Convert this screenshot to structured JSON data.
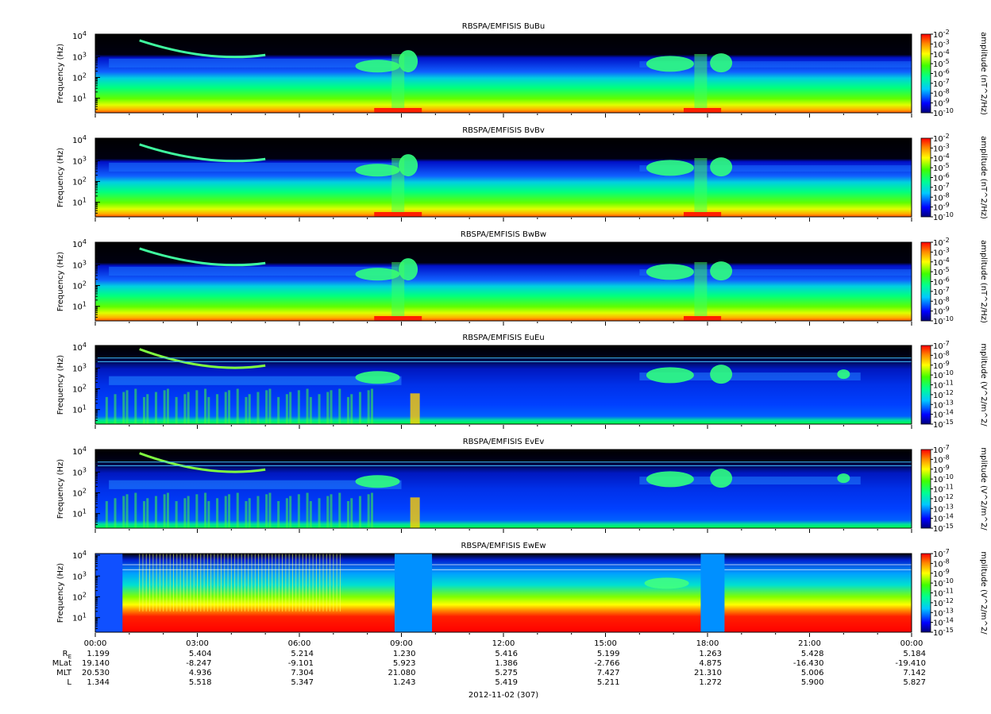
{
  "chart_data": [
    {
      "type": "heatmap",
      "title": "RBSPA/EMFISIS  BuBu",
      "ylabel": "Frequency (Hz)",
      "yscale": "log",
      "ylim": [
        2,
        12000
      ],
      "yticks": [
        "10^1",
        "10^2",
        "10^3",
        "10^4"
      ],
      "colorbar": {
        "label": "amplitude (nT^2/Hz)",
        "ticks": [
          "10^-2",
          "10^-3",
          "10^-4",
          "10^-5",
          "10^-6",
          "10^-7",
          "10^-8",
          "10^-9",
          "10^-10"
        ]
      },
      "kind": "B",
      "ew": false
    },
    {
      "type": "heatmap",
      "title": "RBSPA/EMFISIS  BvBv",
      "ylabel": "Frequency (Hz)",
      "yscale": "log",
      "ylim": [
        2,
        12000
      ],
      "yticks": [
        "10^1",
        "10^2",
        "10^3",
        "10^4"
      ],
      "colorbar": {
        "label": "amplitude (nT^2/Hz)",
        "ticks": [
          "10^-2",
          "10^-3",
          "10^-4",
          "10^-5",
          "10^-6",
          "10^-7",
          "10^-8",
          "10^-9",
          "10^-10"
        ]
      },
      "kind": "B",
      "ew": false
    },
    {
      "type": "heatmap",
      "title": "RBSPA/EMFISIS  BwBw",
      "ylabel": "Frequency (Hz)",
      "yscale": "log",
      "ylim": [
        2,
        12000
      ],
      "yticks": [
        "10^1",
        "10^2",
        "10^3",
        "10^4"
      ],
      "colorbar": {
        "label": "amplitude (nT^2/Hz)",
        "ticks": [
          "10^-2",
          "10^-3",
          "10^-4",
          "10^-5",
          "10^-6",
          "10^-7",
          "10^-8",
          "10^-9",
          "10^-10"
        ]
      },
      "kind": "B",
      "ew": false
    },
    {
      "type": "heatmap",
      "title": "RBSPA/EMFISIS  EuEu",
      "ylabel": "Frequency (Hz)",
      "yscale": "log",
      "ylim": [
        2,
        12000
      ],
      "yticks": [
        "10^1",
        "10^2",
        "10^3",
        "10^4"
      ],
      "colorbar": {
        "label": "mplitude (V^2/m^2/",
        "ticks": [
          "10^-7",
          "10^-8",
          "10^-9",
          "10^-10",
          "10^-11",
          "10^-12",
          "10^-13",
          "10^-14",
          "10^-15"
        ]
      },
      "kind": "E",
      "ew": false
    },
    {
      "type": "heatmap",
      "title": "RBSPA/EMFISIS  EvEv",
      "ylabel": "Frequency (Hz)",
      "yscale": "log",
      "ylim": [
        2,
        12000
      ],
      "yticks": [
        "10^1",
        "10^2",
        "10^3",
        "10^4"
      ],
      "colorbar": {
        "label": "mplitude (V^2/m^2/",
        "ticks": [
          "10^-7",
          "10^-8",
          "10^-9",
          "10^-10",
          "10^-11",
          "10^-12",
          "10^-13",
          "10^-14",
          "10^-15"
        ]
      },
      "kind": "E",
      "ew": false
    },
    {
      "type": "heatmap",
      "title": "RBSPA/EMFISIS  EwEw",
      "ylabel": "Frequency (Hz)",
      "yscale": "log",
      "ylim": [
        2,
        12000
      ],
      "yticks": [
        "10^1",
        "10^2",
        "10^3",
        "10^4"
      ],
      "colorbar": {
        "label": "mplitude (V^2/m^2/",
        "ticks": [
          "10^-7",
          "10^-8",
          "10^-9",
          "10^-10",
          "10^-11",
          "10^-12",
          "10^-13",
          "10^-14",
          "10^-15"
        ]
      },
      "kind": "E",
      "ew": true
    }
  ],
  "xaxis": {
    "ticks": [
      "00:00",
      "03:00",
      "06:00",
      "09:00",
      "12:00",
      "15:00",
      "18:00",
      "21:00",
      "00:00"
    ],
    "date_label": "2012-11-02 (307)"
  },
  "ephemeris": {
    "rows": [
      {
        "label": "R",
        "sub": "E",
        "values": [
          "1.199",
          "5.404",
          "5.214",
          "1.230",
          "5.416",
          "5.199",
          "1.263",
          "5.428",
          "5.184"
        ]
      },
      {
        "label": "MLat",
        "sub": "",
        "values": [
          "19.140",
          "-8.247",
          "-9.101",
          "5.923",
          "1.386",
          "-2.766",
          "4.875",
          "-16.430",
          "-19.410"
        ]
      },
      {
        "label": "MLT",
        "sub": "",
        "values": [
          "20.530",
          "4.936",
          "7.304",
          "21.080",
          "5.275",
          "7.427",
          "21.310",
          "5.006",
          "7.142"
        ]
      },
      {
        "label": "L",
        "sub": "",
        "values": [
          "1.344",
          "5.518",
          "5.347",
          "1.243",
          "5.419",
          "5.211",
          "1.272",
          "5.900",
          "5.827"
        ]
      }
    ]
  }
}
